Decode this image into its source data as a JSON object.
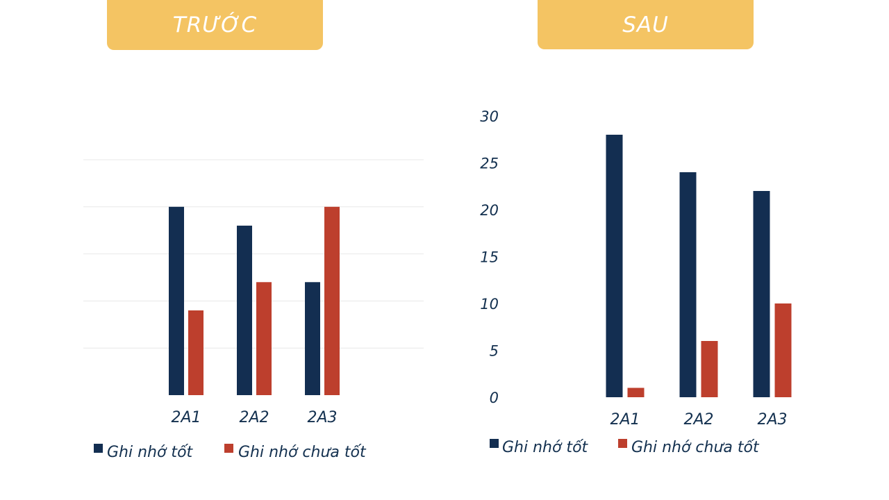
{
  "colors": {
    "banner": "#f4c463",
    "series_good": "#132e51",
    "series_bad": "#bd3f2d",
    "text": "#13304f",
    "grid": "#e8e8e8"
  },
  "banners": {
    "before": "TRƯỚC",
    "after": "SAU"
  },
  "chart_data": [
    {
      "type": "bar",
      "title": "TRƯỚC",
      "categories": [
        "2A1",
        "2A2",
        "2A3"
      ],
      "series": [
        {
          "name": "Ghi nhớ tốt",
          "values": [
            20,
            18,
            12
          ]
        },
        {
          "name": "Ghi nhớ chưa tốt",
          "values": [
            9,
            12,
            20
          ]
        }
      ],
      "ylim": [
        0,
        25
      ],
      "grid": true,
      "y_ticks_visible": false,
      "legend": "bottom"
    },
    {
      "type": "bar",
      "title": "SAU",
      "categories": [
        "2A1",
        "2A2",
        "2A3"
      ],
      "series": [
        {
          "name": "Ghi nhớ tốt",
          "values": [
            28,
            24,
            22
          ]
        },
        {
          "name": "Ghi nhớ chưa tốt",
          "values": [
            1,
            6,
            10
          ]
        }
      ],
      "ylim": [
        0,
        30
      ],
      "y_ticks": [
        "0",
        "5",
        "10",
        "15",
        "20",
        "25",
        "30"
      ],
      "grid": false,
      "legend": "bottom"
    }
  ]
}
